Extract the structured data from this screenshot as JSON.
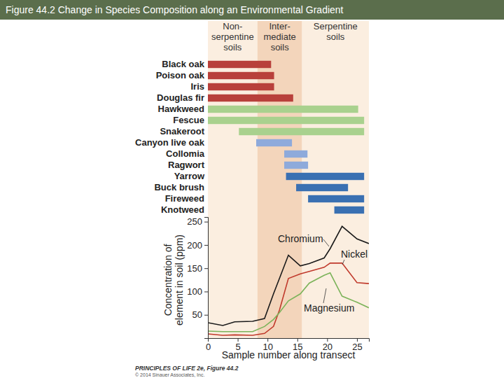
{
  "chart_data": [
    {
      "type": "range_bar",
      "title": "Figure 44.2 Change in Species Composition along an Environmental Gradient",
      "orientation": "horizontal",
      "tick_labels": "y",
      "xlim": [
        0,
        27
      ],
      "zones": [
        {
          "label": [
            "Non-",
            "serpentine",
            "soils"
          ],
          "start": 0,
          "end": 8.3
        },
        {
          "label": [
            "Inter-",
            "mediate",
            "soils"
          ],
          "start": 8.3,
          "end": 15.8
        },
        {
          "label": [
            "Serpentine",
            "soils"
          ],
          "start": 15.8,
          "end": 27
        }
      ],
      "categories": [
        "Black oak",
        "Poison oak",
        "Iris",
        "Douglas fir",
        "Hawkweed",
        "Fescue",
        "Snakeroot",
        "Canyon live oak",
        "Collomia",
        "Ragwort",
        "Yarrow",
        "Buck brush",
        "Fireweed",
        "Knotweed"
      ],
      "values": [
        [
          0,
          10.6
        ],
        [
          0,
          11.1
        ],
        [
          0,
          11.1
        ],
        [
          0,
          14.3
        ],
        [
          0,
          25.2
        ],
        [
          0,
          26.2
        ],
        [
          5.2,
          26.2
        ],
        [
          8.1,
          14.1
        ],
        [
          12.8,
          16.7
        ],
        [
          12.8,
          16.8
        ],
        [
          13.1,
          26.2
        ],
        [
          14.8,
          23.5
        ],
        [
          16.8,
          26.2
        ],
        [
          21.2,
          26.2
        ]
      ],
      "colors": [
        "#b8403b",
        "#b8403b",
        "#b8403b",
        "#b8403b",
        "#a9d18e",
        "#a9d18e",
        "#a9d18e",
        "#8eaadb",
        "#8eaadb",
        "#8eaadb",
        "#3a70b2",
        "#3a70b2",
        "#3a70b2",
        "#3a70b2"
      ]
    },
    {
      "type": "line",
      "x_label": "Sample number along transect",
      "y_label": [
        "Concentration of",
        "element in soil (ppm)"
      ],
      "xlim": [
        0,
        27
      ],
      "ylim": [
        0,
        260
      ],
      "xticks": [
        0,
        5,
        10,
        15,
        20,
        25
      ],
      "yticks": [
        50,
        100,
        150,
        200,
        250
      ],
      "x": [
        0,
        2.5,
        4.5,
        7.5,
        9.5,
        11,
        12,
        13.5,
        15.5,
        17,
        19.5,
        20.5,
        22.5,
        25,
        27
      ],
      "series": [
        {
          "name": "Chromium",
          "color": "#1a1a1a",
          "values": [
            33,
            27,
            35,
            36,
            42,
            95,
            128,
            178,
            155,
            160,
            172,
            192,
            240,
            213,
            203
          ]
        },
        {
          "name": "Nickel",
          "color": "#c0392b",
          "values": [
            9,
            6,
            7,
            6,
            10,
            25,
            60,
            128,
            138,
            143,
            152,
            161,
            161,
            119,
            117
          ]
        },
        {
          "name": "Magnesium",
          "color": "#7cb35a",
          "values": [
            15,
            14,
            14,
            14,
            25,
            40,
            55,
            80,
            95,
            118,
            135,
            140,
            90,
            77,
            65
          ]
        }
      ],
      "annotations": [
        "PRINCIPLES OF LIFE 2e, Figure 44.2",
        "© 2014 Sinauer Associates, Inc."
      ]
    }
  ]
}
